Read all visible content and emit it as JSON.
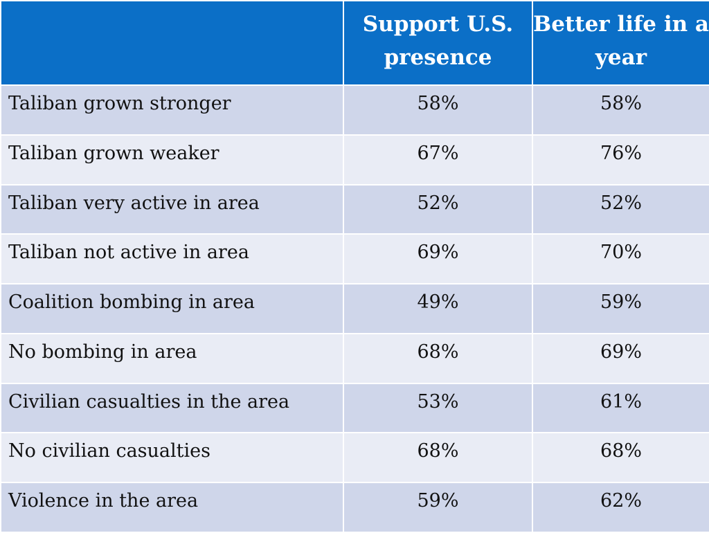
{
  "chart_data": {
    "type": "table",
    "columns": [
      "",
      "Support U.S. presence",
      "Better life in a year"
    ],
    "rows": [
      {
        "label": "Taliban grown stronger",
        "values": [
          "58%",
          "58%"
        ]
      },
      {
        "label": "Taliban grown weaker",
        "values": [
          "67%",
          "76%"
        ]
      },
      {
        "label": "Taliban very active in area",
        "values": [
          "52%",
          "52%"
        ]
      },
      {
        "label": "Taliban not active in area",
        "values": [
          "69%",
          "70%"
        ]
      },
      {
        "label": "Coalition bombing in area",
        "values": [
          "49%",
          "59%"
        ]
      },
      {
        "label": "No bombing in area",
        "values": [
          "68%",
          "69%"
        ]
      },
      {
        "label": "Civilian casualties in the area",
        "values": [
          "53%",
          "61%"
        ]
      },
      {
        "label": "No civilian casualties",
        "values": [
          "68%",
          "68%"
        ]
      },
      {
        "label": "Violence in the area",
        "values": [
          "59%",
          "62%"
        ]
      }
    ],
    "colors": {
      "header_bg": "#0b6fc7",
      "header_text": "#ffffff",
      "row_odd_bg": "#cfd6ea",
      "row_even_bg": "#e9ecf5"
    }
  }
}
